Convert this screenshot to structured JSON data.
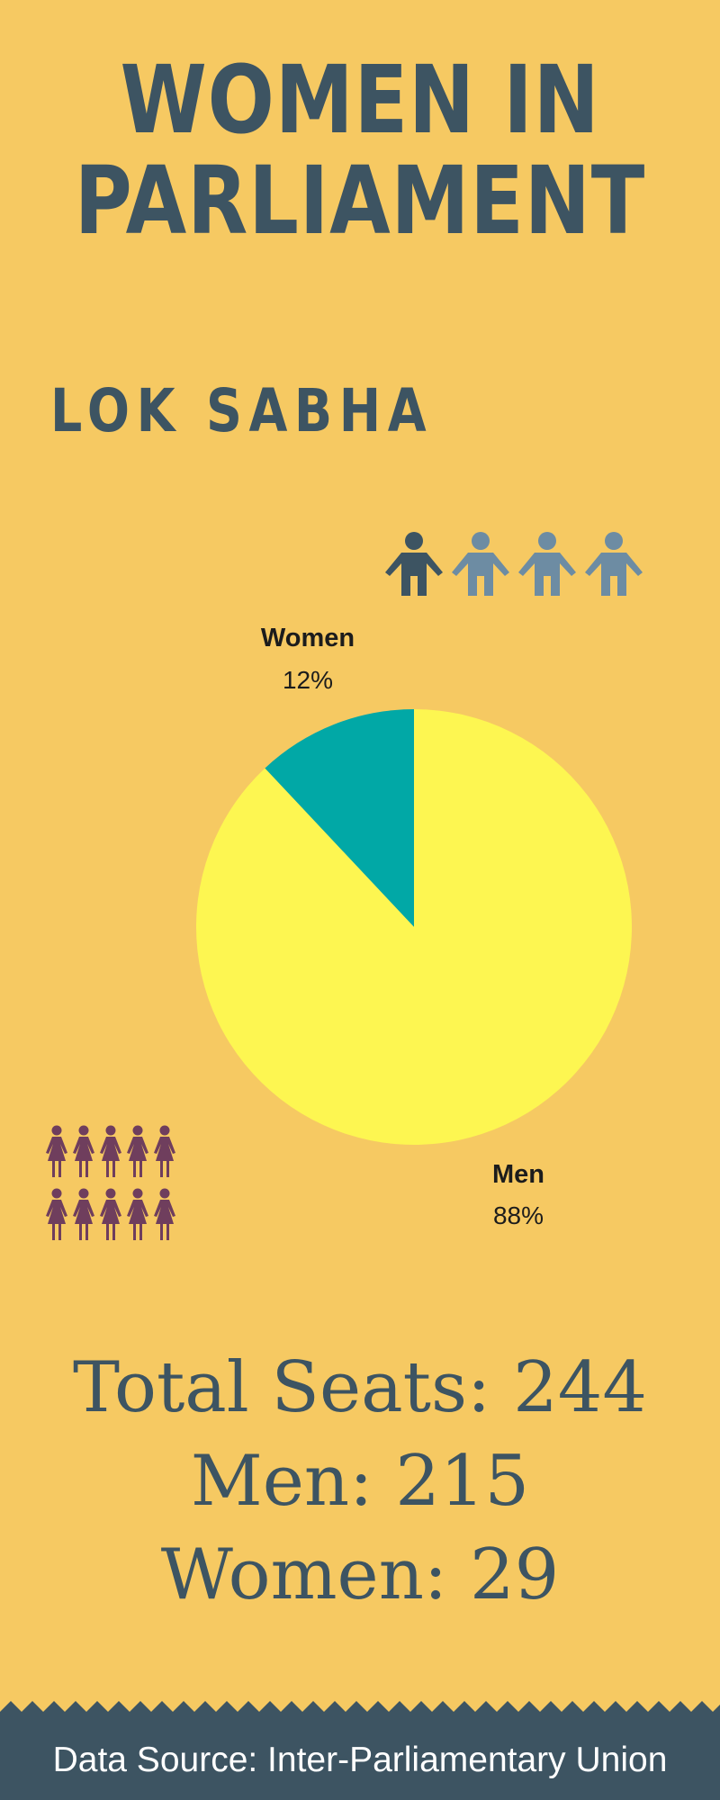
{
  "title": {
    "line1": "WOMEN IN",
    "line2": "PARLIAMENT"
  },
  "subtitle": "LOK SABHA",
  "chart_data": {
    "type": "pie",
    "slices": [
      {
        "name": "Women",
        "value": 12,
        "label": "12%",
        "color": "#01a8a6"
      },
      {
        "name": "Men",
        "value": 88,
        "label": "88%",
        "color": "#fdf651"
      }
    ]
  },
  "icons": {
    "men_group": {
      "icon": "man-icon",
      "count": 4,
      "highlight_count": 1,
      "highlight_color": "#3d5462",
      "color": "#6d8ca3"
    },
    "women_group": {
      "icon": "woman-icon",
      "count": 10,
      "color": "#6f3e5d"
    }
  },
  "stats": {
    "total": "Total Seats: 244",
    "men": "Men: 215",
    "women": "Women: 29"
  },
  "footer": {
    "text": "Data Source: Inter-Parliamentary Union",
    "color": "#3d5462"
  }
}
